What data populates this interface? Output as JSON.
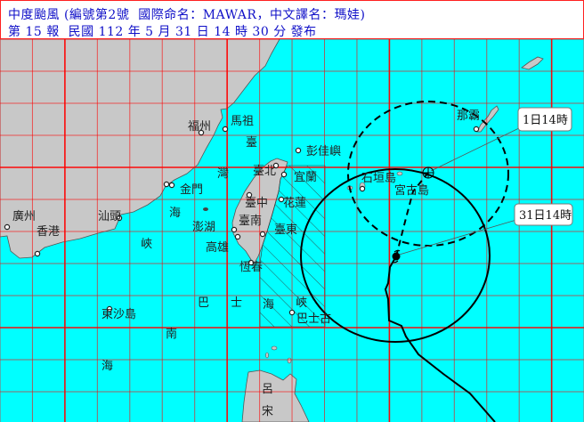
{
  "header": {
    "line1": "中度颱風 (編號第2號  國際命名：MAWAR，中文譯名：瑪娃)",
    "line2": "第 15 報  民國 112 年 5 月 31 日 14 時 30 分 發布"
  },
  "colors": {
    "sea": "#00ffff",
    "land": "#c8c8c8",
    "grid": "#ff0000",
    "title_text": "#1010c8"
  },
  "map": {
    "forecast_labels": {
      "current": "31日14時",
      "forecast_24h": "1日14時"
    },
    "places": {
      "fuzhou": "福州",
      "matsu": "馬祖",
      "pengjia": "彭佳嶼",
      "taipei": "臺北",
      "yilan": "宜蘭",
      "kinmen": "金門",
      "taichung": "臺中",
      "hualien": "花蓮",
      "penghu": "澎湖",
      "tainan": "臺南",
      "taitung": "臺東",
      "kaohsiung": "高雄",
      "hengchun": "恆春",
      "guangzhou": "廣州",
      "hongkong": "香港",
      "shantou": "汕頭",
      "dongsha": "東沙島",
      "basco": "巴士古",
      "ishigaki": "石垣島",
      "miyako": "宮古島",
      "naha": "那霸"
    },
    "sea_names": {
      "strait_1": "臺",
      "strait_2": "灣",
      "strait_3": "海",
      "strait_4": "峽",
      "bashi_1": "巴",
      "bashi_2": "士",
      "bashi_3": "海",
      "bashi_4": "峽",
      "scs_1": "南",
      "scs_2": "海",
      "luzon_1": "呂",
      "luzon_2": "宋"
    },
    "icons": [
      "typhoon-current-position-icon",
      "typhoon-forecast-position-icon",
      "city-marker-icon"
    ]
  }
}
